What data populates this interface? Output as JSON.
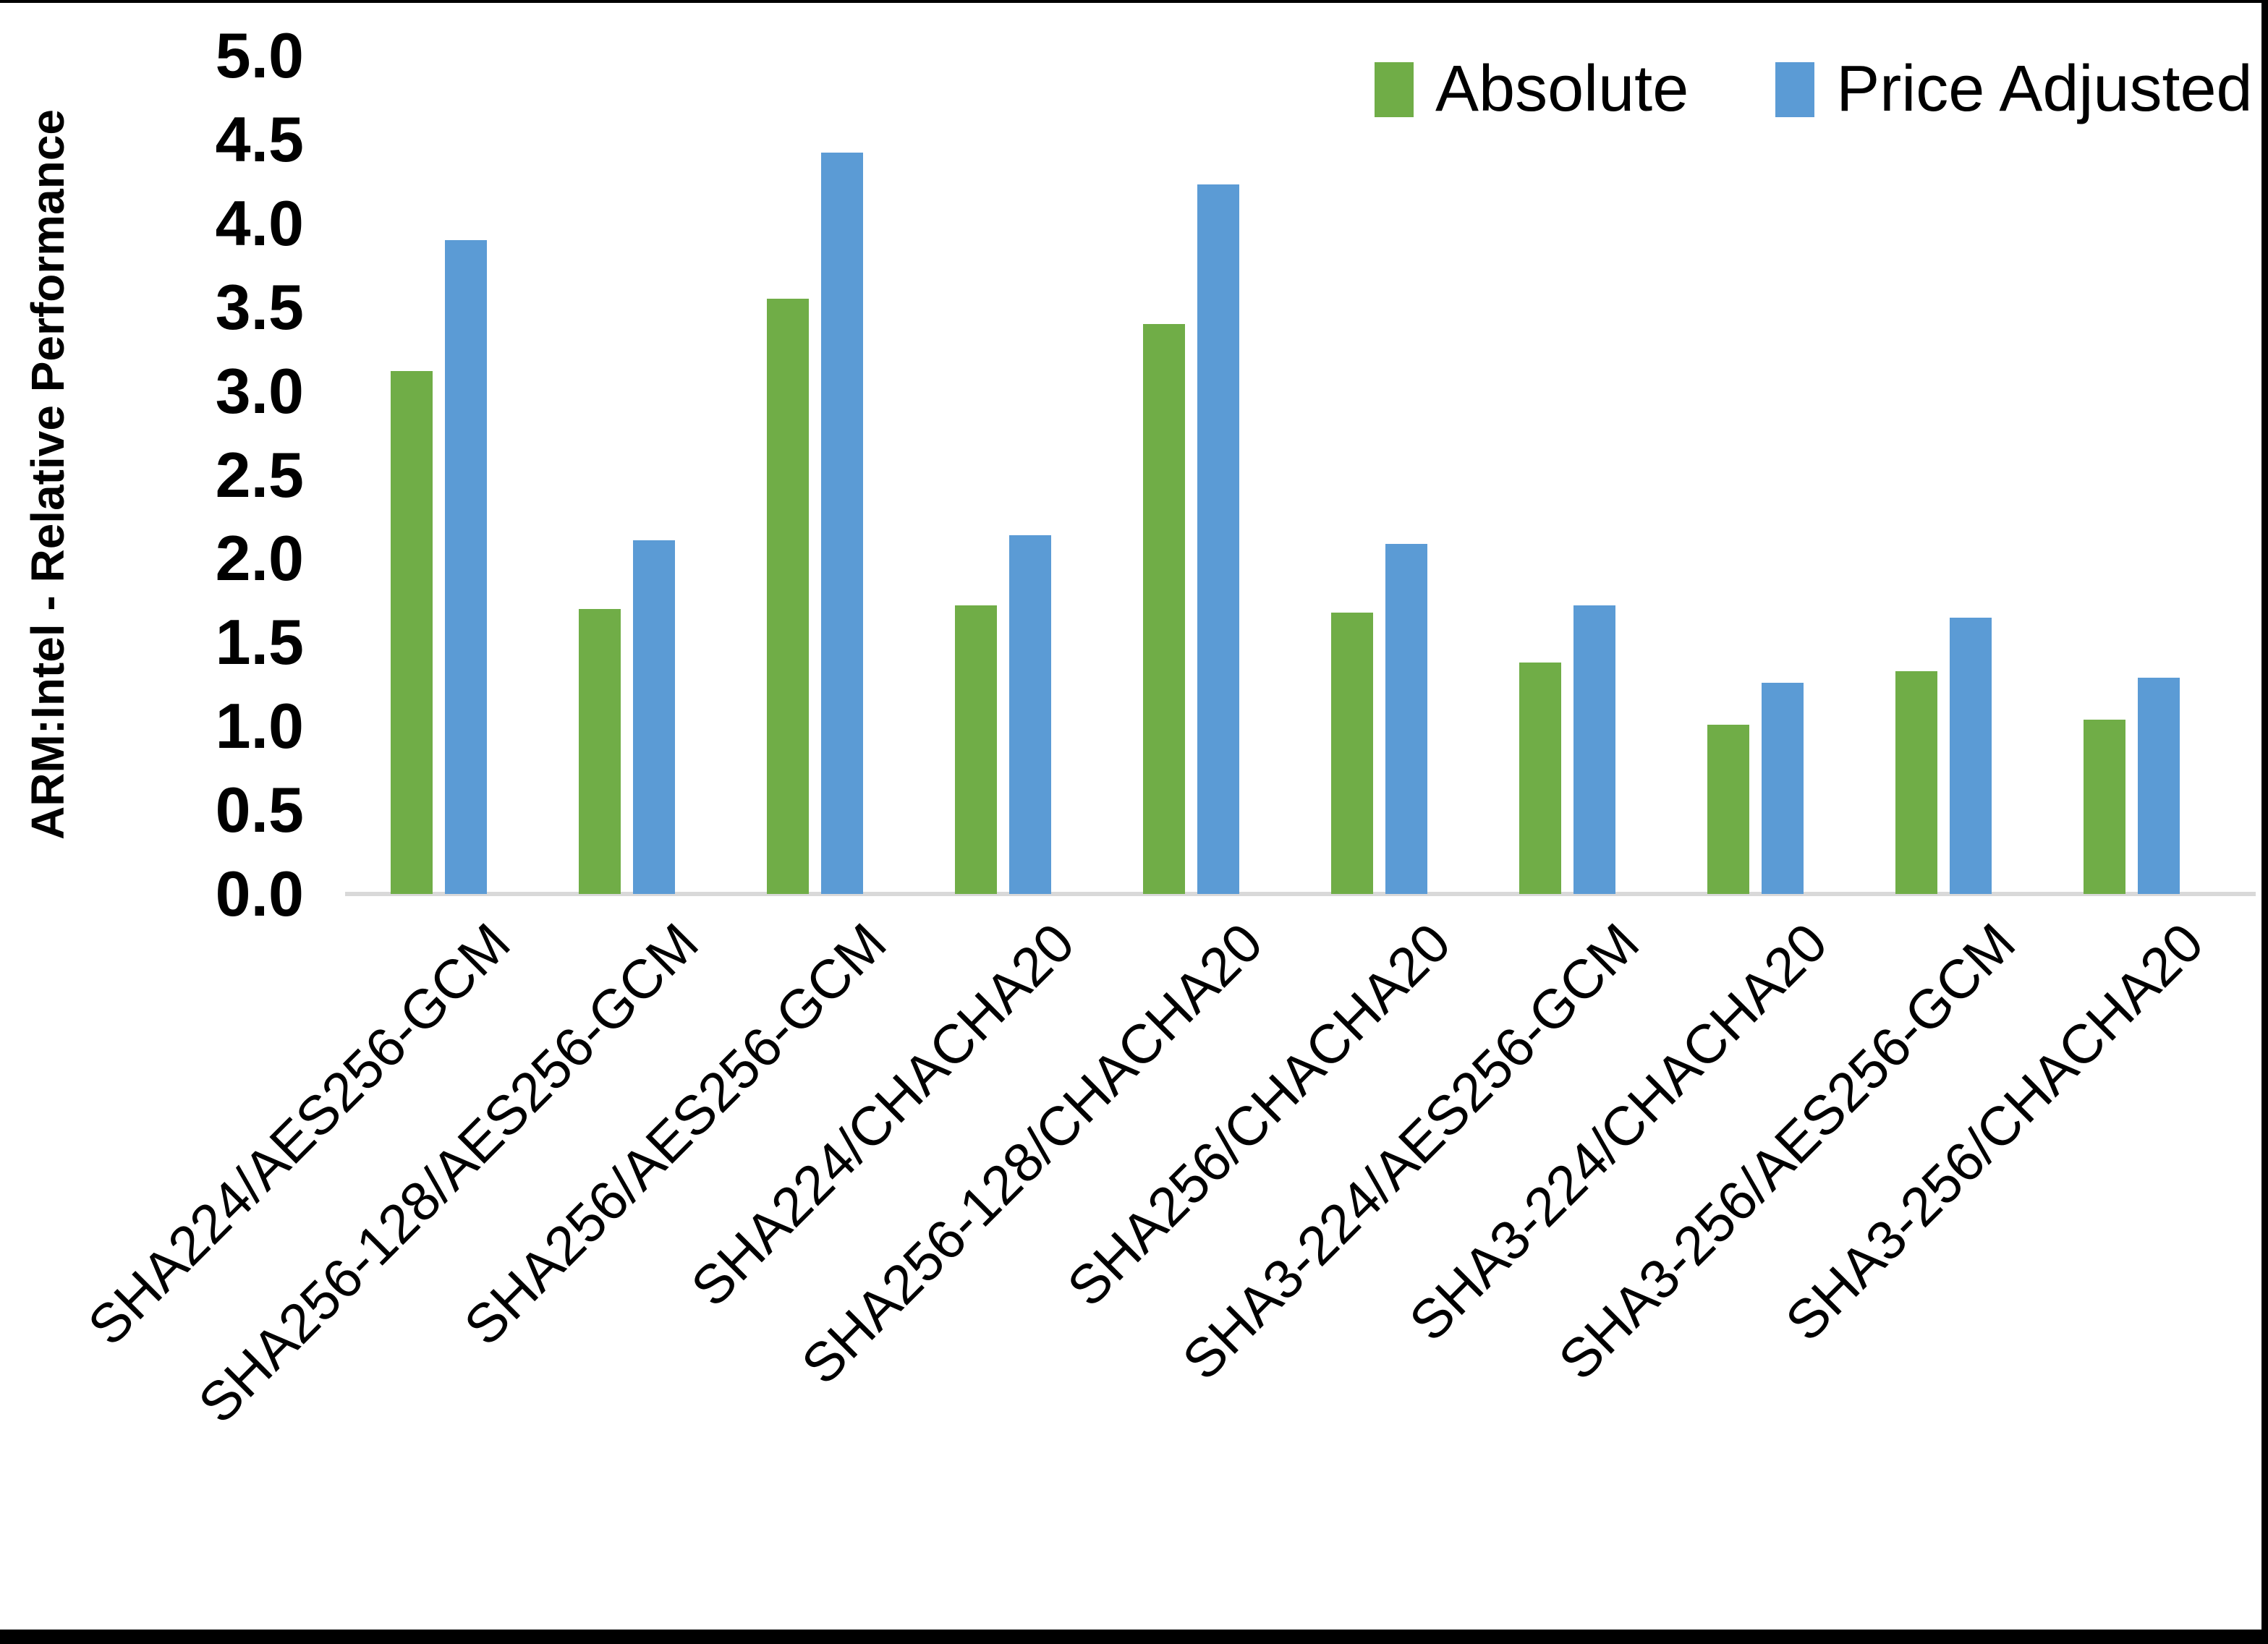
{
  "figure": {
    "y_axis_title": "ARM:Intel - Relative Performance"
  },
  "chart_data": {
    "type": "bar",
    "title": "",
    "xlabel": "",
    "ylabel": "ARM:Intel - Relative Performance",
    "ylim": [
      0.0,
      5.0
    ],
    "ytick_step": 0.5,
    "ytick_labels": [
      "0.0",
      "0.5",
      "1.0",
      "1.5",
      "2.0",
      "2.5",
      "3.0",
      "3.5",
      "4.0",
      "4.5",
      "5.0"
    ],
    "grid": false,
    "legend_position": "top-right",
    "axis_line_color": "#d9d9d9",
    "categories": [
      "SHA224/AES256-GCM",
      "SHA256-128/AES256-GCM",
      "SHA256/AES256-GCM",
      "SHA224/CHACHA20",
      "SHA256-128/CHACHA20",
      "SHA256/CHACHA20",
      "SHA3-224/AES256-GCM",
      "SHA3-224/CHACHA20",
      "SHA3-256/AES256-GCM",
      "SHA3-256/CHACHA20"
    ],
    "series": [
      {
        "name": "Absolute",
        "color": "#70AD47",
        "values": [
          3.12,
          1.7,
          3.55,
          1.72,
          3.4,
          1.68,
          1.38,
          1.01,
          1.33,
          1.04
        ]
      },
      {
        "name": "Price Adjusted",
        "color": "#5B9BD5",
        "values": [
          3.9,
          2.11,
          4.42,
          2.14,
          4.23,
          2.09,
          1.72,
          1.26,
          1.65,
          1.29
        ]
      }
    ]
  }
}
